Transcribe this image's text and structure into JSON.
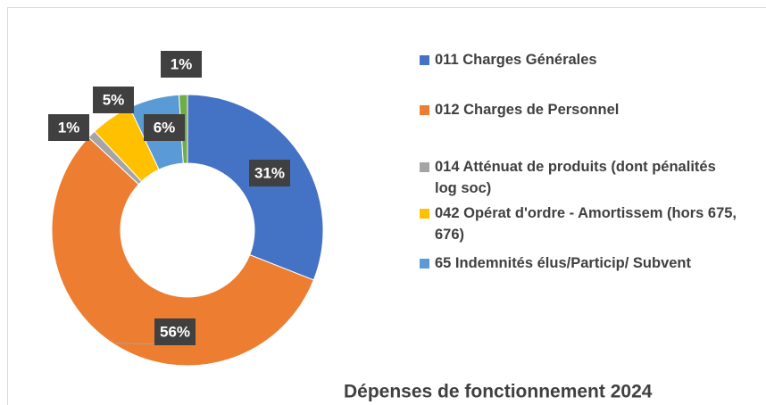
{
  "chart_data": {
    "type": "donut",
    "title": "Dépenses de fonctionnement 2024",
    "categories": [
      "011 Charges Générales",
      "012 Charges de Personnel",
      "014 Atténuat de produits (dont pénalités log soc)",
      "042 Opérat d'ordre - Amortissem (hors 675, 676)",
      " 65 Indemnités élus/Particip/ Subvent",
      null
    ],
    "values": [
      31,
      56,
      1,
      5,
      6,
      1
    ],
    "value_labels": [
      "31%",
      "56%",
      "1%",
      "5%",
      "6%",
      "1%"
    ],
    "colors": [
      "#4472c4",
      "#ed7d31",
      "#a5a5a5",
      "#ffc000",
      "#5b9bd5",
      "#70ad47"
    ],
    "legend": "right"
  }
}
